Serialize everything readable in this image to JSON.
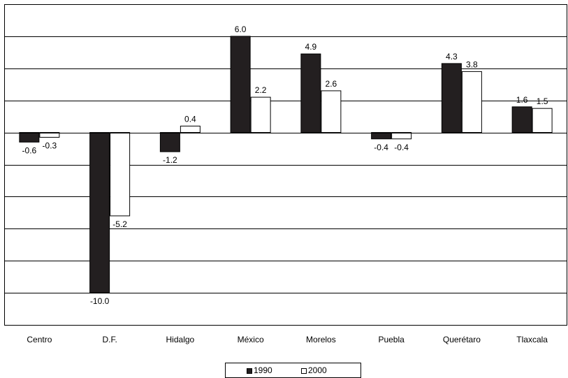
{
  "chart_data": {
    "type": "bar",
    "categories": [
      "Centro",
      "D.F.",
      "Hidalgo",
      "México",
      "Morelos",
      "Puebla",
      "Querétaro",
      "Tlaxcala"
    ],
    "series": [
      {
        "name": "1990",
        "color": "#231f20",
        "values": [
          -0.6,
          -10.0,
          -1.2,
          6.0,
          4.9,
          -0.4,
          4.3,
          1.6
        ],
        "labels": [
          "-0.6",
          "-10.0",
          "-1.2",
          "6.0",
          "4.9",
          "-0.4",
          "4.3",
          "1.6"
        ]
      },
      {
        "name": "2000",
        "color": "#ffffff",
        "values": [
          -0.3,
          -5.2,
          0.4,
          2.2,
          2.6,
          -0.4,
          3.8,
          1.5
        ],
        "labels": [
          "-0.3",
          "-5.2",
          "0.4",
          "2.2",
          "2.6",
          "-0.4",
          "3.8",
          "1.5"
        ]
      }
    ],
    "ylim": [
      -12,
      8
    ],
    "grid": true,
    "legend_position": "bottom"
  }
}
